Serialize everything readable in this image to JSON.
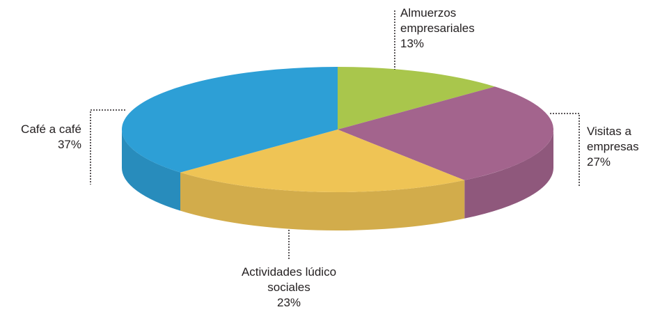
{
  "chart_data": {
    "type": "pie",
    "categories": [
      "Almuerzos empresariales",
      "Visitas a empresas",
      "Actividades lúdico sociales",
      "Café a café"
    ],
    "values": [
      13,
      27,
      23,
      37
    ],
    "value_labels": [
      "13%",
      "27%",
      "23%",
      "37%"
    ],
    "colors": [
      "#a9c64c",
      "#a3648d",
      "#efc455",
      "#2d9fd6"
    ]
  }
}
